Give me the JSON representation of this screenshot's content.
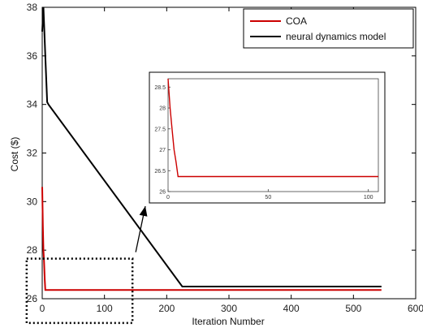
{
  "chart_data": {
    "type": "line",
    "xlabel": "Iteration Number",
    "ylabel": "Cost ($)",
    "xlim": [
      0,
      600
    ],
    "ylim": [
      26,
      38
    ],
    "xticks": [
      "0",
      "100",
      "200",
      "300",
      "400",
      "500",
      "600"
    ],
    "yticks": [
      "26",
      "28",
      "30",
      "32",
      "34",
      "36",
      "38"
    ],
    "legend_position": "top-right",
    "series": [
      {
        "name": "COA",
        "color": "#cc0000",
        "x": [
          0,
          1,
          2,
          3,
          4,
          5,
          545
        ],
        "y": [
          30.6,
          29.0,
          28.0,
          27.5,
          26.8,
          26.36,
          26.36
        ]
      },
      {
        "name": "neural dynamics model",
        "color": "#000000",
        "x": [
          0,
          2,
          5,
          8,
          10,
          225,
          545
        ],
        "y": [
          37.0,
          38.0,
          36.0,
          34.1,
          34.0,
          26.5,
          26.5
        ]
      }
    ],
    "inset": {
      "xlim": [
        0,
        105
      ],
      "ylim": [
        26,
        28.7
      ],
      "xticks": [
        "0",
        "50",
        "100"
      ],
      "yticks": [
        "26",
        "26.5",
        "27",
        "27.5",
        "28",
        "28.5"
      ],
      "series": [
        {
          "name": "COA",
          "color": "#cc0000",
          "x": [
            0,
            1,
            2,
            3,
            4,
            5,
            105
          ],
          "y": [
            28.7,
            28.0,
            27.5,
            27.0,
            26.7,
            26.36,
            26.36
          ]
        }
      ]
    },
    "zoom_box": {
      "xlim": [
        -25,
        145
      ],
      "ylim": [
        25.0,
        27.65
      ]
    }
  }
}
